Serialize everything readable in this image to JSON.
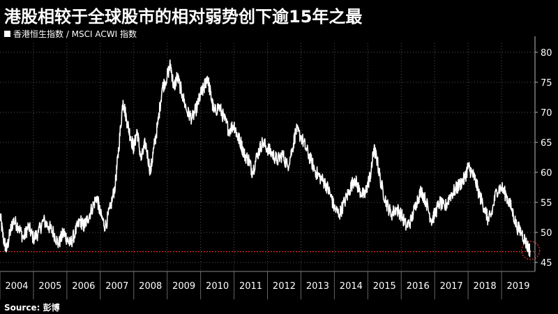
{
  "title": "港股相较于全球股市的相对弱势创下逾15年之最",
  "source": "Source: 彭博",
  "colors": {
    "background": "#000000",
    "series": "#ffffff",
    "reference_line": "#e0302a",
    "grid": "#555555"
  },
  "chart_data": {
    "type": "line",
    "series": [
      {
        "name": "香港恒生指数 / MSCI ACWI 指数",
        "points": [
          [
            2004.0,
            53
          ],
          [
            2004.1,
            49
          ],
          [
            2004.2,
            47
          ],
          [
            2004.3,
            50
          ],
          [
            2004.4,
            52
          ],
          [
            2004.55,
            51
          ],
          [
            2004.7,
            49
          ],
          [
            2004.85,
            51
          ],
          [
            2005.0,
            49
          ],
          [
            2005.15,
            50
          ],
          [
            2005.3,
            52
          ],
          [
            2005.45,
            51
          ],
          [
            2005.6,
            50
          ],
          [
            2005.75,
            48
          ],
          [
            2005.9,
            50
          ],
          [
            2006.0,
            49
          ],
          [
            2006.1,
            48
          ],
          [
            2006.25,
            50
          ],
          [
            2006.4,
            52
          ],
          [
            2006.5,
            51
          ],
          [
            2006.6,
            52
          ],
          [
            2006.75,
            54
          ],
          [
            2006.9,
            56
          ],
          [
            2007.0,
            53
          ],
          [
            2007.15,
            51
          ],
          [
            2007.3,
            54
          ],
          [
            2007.45,
            58
          ],
          [
            2007.55,
            64
          ],
          [
            2007.68,
            72
          ],
          [
            2007.78,
            69
          ],
          [
            2007.9,
            66
          ],
          [
            2008.0,
            64
          ],
          [
            2008.1,
            67
          ],
          [
            2008.22,
            62
          ],
          [
            2008.35,
            65
          ],
          [
            2008.5,
            60
          ],
          [
            2008.6,
            64
          ],
          [
            2008.72,
            68
          ],
          [
            2008.85,
            74
          ],
          [
            2009.0,
            76
          ],
          [
            2009.1,
            78
          ],
          [
            2009.2,
            74
          ],
          [
            2009.3,
            76
          ],
          [
            2009.45,
            73
          ],
          [
            2009.6,
            70
          ],
          [
            2009.75,
            69
          ],
          [
            2009.9,
            71
          ],
          [
            2010.0,
            73
          ],
          [
            2010.1,
            74
          ],
          [
            2010.2,
            76
          ],
          [
            2010.3,
            73
          ],
          [
            2010.4,
            70
          ],
          [
            2010.55,
            71
          ],
          [
            2010.7,
            69
          ],
          [
            2010.85,
            67
          ],
          [
            2011.0,
            68
          ],
          [
            2011.1,
            66
          ],
          [
            2011.2,
            65
          ],
          [
            2011.3,
            63
          ],
          [
            2011.45,
            62
          ],
          [
            2011.55,
            60
          ],
          [
            2011.7,
            63
          ],
          [
            2011.85,
            65
          ],
          [
            2012.0,
            64
          ],
          [
            2012.15,
            63
          ],
          [
            2012.3,
            62
          ],
          [
            2012.45,
            63
          ],
          [
            2012.6,
            61
          ],
          [
            2012.75,
            64
          ],
          [
            2012.85,
            67
          ],
          [
            2013.0,
            66
          ],
          [
            2013.15,
            64
          ],
          [
            2013.3,
            62
          ],
          [
            2013.45,
            60
          ],
          [
            2013.6,
            59
          ],
          [
            2013.75,
            58
          ],
          [
            2013.9,
            56
          ],
          [
            2014.0,
            54
          ],
          [
            2014.15,
            53
          ],
          [
            2014.3,
            55
          ],
          [
            2014.45,
            57
          ],
          [
            2014.6,
            59
          ],
          [
            2014.75,
            57
          ],
          [
            2014.9,
            56
          ],
          [
            2015.0,
            58
          ],
          [
            2015.1,
            60
          ],
          [
            2015.18,
            64
          ],
          [
            2015.28,
            62
          ],
          [
            2015.4,
            58
          ],
          [
            2015.55,
            55
          ],
          [
            2015.7,
            53
          ],
          [
            2015.85,
            54
          ],
          [
            2016.0,
            53
          ],
          [
            2016.15,
            51
          ],
          [
            2016.3,
            52
          ],
          [
            2016.45,
            55
          ],
          [
            2016.6,
            57
          ],
          [
            2016.75,
            55
          ],
          [
            2016.9,
            52
          ],
          [
            2017.0,
            53
          ],
          [
            2017.15,
            55
          ],
          [
            2017.3,
            54
          ],
          [
            2017.45,
            56
          ],
          [
            2017.6,
            57
          ],
          [
            2017.75,
            58
          ],
          [
            2017.9,
            59
          ],
          [
            2018.0,
            61
          ],
          [
            2018.1,
            60
          ],
          [
            2018.2,
            59
          ],
          [
            2018.35,
            56
          ],
          [
            2018.5,
            54
          ],
          [
            2018.6,
            52
          ],
          [
            2018.7,
            53
          ],
          [
            2018.85,
            57
          ],
          [
            2019.0,
            57.5
          ],
          [
            2019.15,
            56
          ],
          [
            2019.3,
            54
          ],
          [
            2019.45,
            51
          ],
          [
            2019.6,
            50
          ],
          [
            2019.75,
            48
          ],
          [
            2019.85,
            47
          ]
        ]
      }
    ],
    "x_tick_labels": [
      "2004",
      "2005",
      "2006",
      "2007",
      "2008",
      "2009",
      "2010",
      "2011",
      "2012",
      "2013",
      "2014",
      "2015",
      "2016",
      "2017",
      "2018",
      "2019"
    ],
    "x_ticks": [
      2004,
      2005,
      2006,
      2007,
      2008,
      2009,
      2010,
      2011,
      2012,
      2013,
      2014,
      2015,
      2016,
      2017,
      2018,
      2019
    ],
    "y_ticks": [
      45,
      50,
      55,
      60,
      65,
      70,
      75,
      80
    ],
    "y_tick_labels": [
      "45",
      "50",
      "55",
      "60",
      "65",
      "70",
      "75",
      "80"
    ],
    "xlim": [
      2004.0,
      2020.0
    ],
    "ylim": [
      43.5,
      81.5
    ],
    "reference_line": {
      "y": 46.8
    },
    "highlight_circle": {
      "x": 2019.87,
      "y": 47
    },
    "grid": true,
    "y_axis_side": "right",
    "legend_position": "top-left"
  }
}
